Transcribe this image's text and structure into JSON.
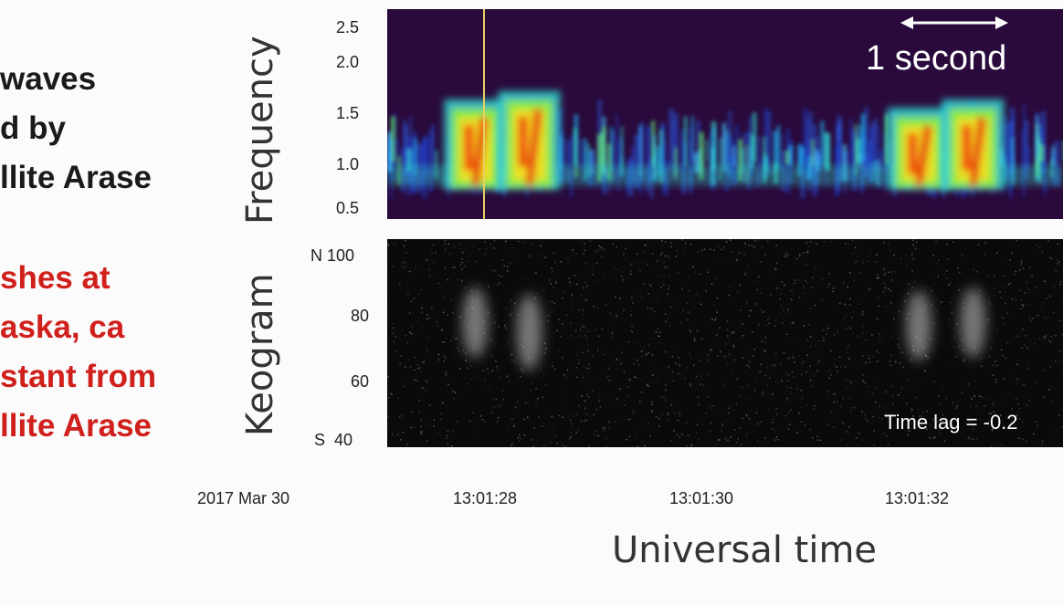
{
  "left_text": {
    "black_lines": [
      "waves",
      "d by",
      "llite Arase"
    ],
    "red_lines": [
      "shes at",
      "aska, ca",
      "stant from",
      "llite Arase"
    ]
  },
  "colors": {
    "black_text": "#1a1a1a",
    "red_text": "#d0201c",
    "spectrogram_bg": "#2a0a3c",
    "keogram_bg": "#0a0a0a",
    "marker_line": "#e8d060"
  },
  "chart_data": [
    {
      "type": "heatmap",
      "panel": "spectrogram",
      "ylabel": "Frequency",
      "yticks": [
        "2.5",
        "2.0",
        "1.5",
        "1.0",
        "0.5"
      ],
      "ylim": [
        0.4,
        2.6
      ],
      "scale_bar": "1 second",
      "marker_time": "13:01:27.8",
      "bursts": [
        {
          "t": 27.8,
          "f_low": 0.7,
          "f_high": 1.7,
          "intensity": 1.0
        },
        {
          "t": 28.3,
          "f_low": 0.7,
          "f_high": 1.8,
          "intensity": 1.0
        },
        {
          "t": 31.9,
          "f_low": 0.7,
          "f_high": 1.6,
          "intensity": 0.95
        },
        {
          "t": 32.4,
          "f_low": 0.7,
          "f_high": 1.7,
          "intensity": 0.95
        }
      ]
    },
    {
      "type": "heatmap",
      "panel": "keogram",
      "ylabel": "Keogram",
      "yticks": [
        "N 100",
        "80",
        "60",
        "S  40"
      ],
      "ylim": [
        38,
        102
      ],
      "annotation": "Time lag = -0.2",
      "patches": [
        {
          "t": 27.8,
          "lat_center": 79,
          "lat_span": 14
        },
        {
          "t": 28.3,
          "lat_center": 76,
          "lat_span": 16
        },
        {
          "t": 31.9,
          "lat_center": 78,
          "lat_span": 14
        },
        {
          "t": 32.4,
          "lat_center": 79,
          "lat_span": 14
        }
      ]
    }
  ],
  "xaxis": {
    "date_label": "2017 Mar 30",
    "tick_labels": [
      "13:01:28",
      "13:01:30",
      "13:01:32"
    ],
    "xlabel": "Universal time"
  }
}
